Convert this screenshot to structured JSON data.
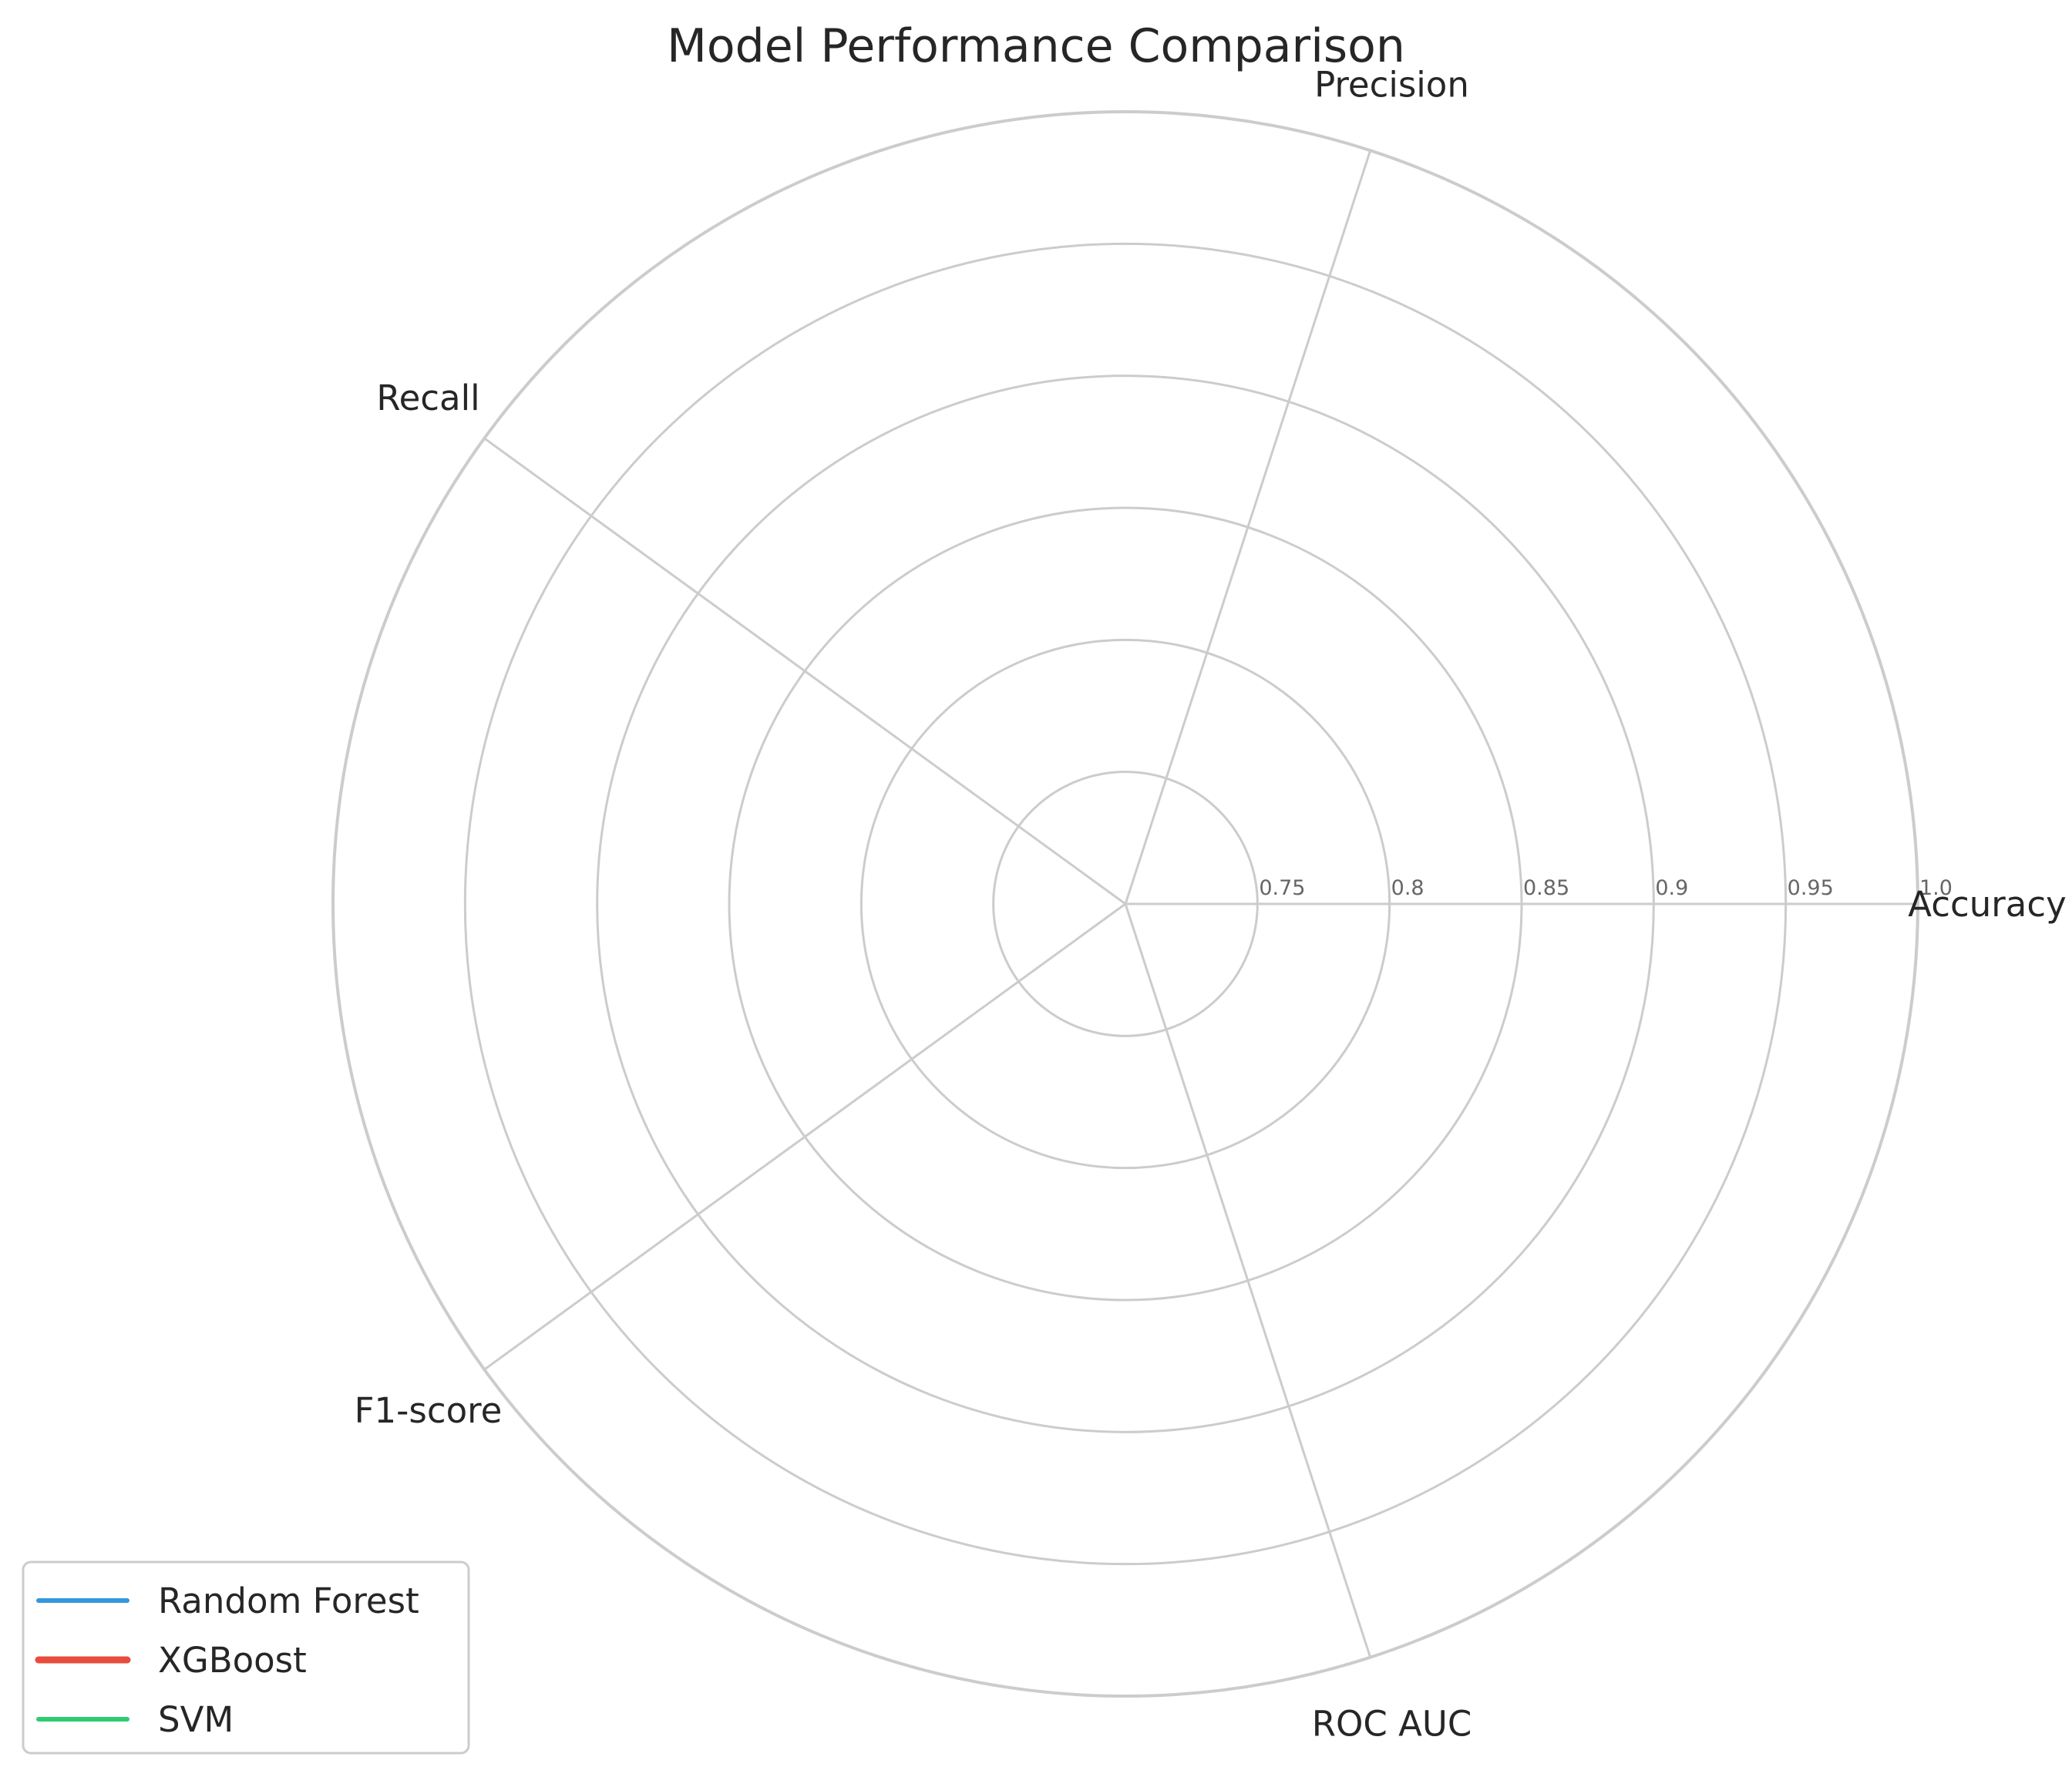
{
  "chart_data": {
    "type": "radar",
    "title": "Model Performance Comparison",
    "axes": [
      "Accuracy",
      "Precision",
      "Recall",
      "F1-score",
      "ROC AUC"
    ],
    "rlim": [
      0.7,
      1.0
    ],
    "r_ticks": [
      "0.75",
      "0.8",
      "0.85",
      "0.9",
      "0.95",
      "1.0"
    ],
    "grid": true,
    "legend_position": "lower-left",
    "series": [
      {
        "name": "Random Forest",
        "color": "#3498db",
        "values": []
      },
      {
        "name": "XGBoost",
        "color": "#e74c3c",
        "values": []
      },
      {
        "name": "SVM",
        "color": "#2ecc71",
        "values": []
      }
    ]
  }
}
